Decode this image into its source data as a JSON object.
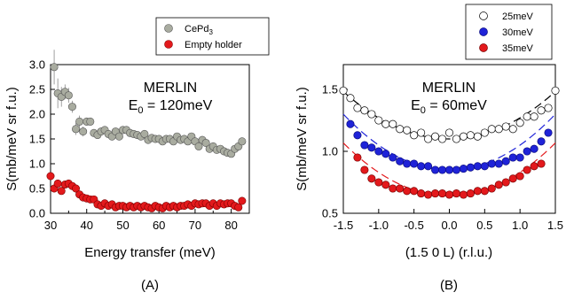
{
  "chart_data": [
    {
      "type": "scatter",
      "panel_label": "(A)",
      "xlabel": "Energy transfer (meV)",
      "ylabel": "S(mb/meV sr f.u.)",
      "xlim": [
        30,
        85
      ],
      "ylim": [
        0.0,
        3.0
      ],
      "xticks": [
        "30",
        "40",
        "50",
        "60",
        "70",
        "80"
      ],
      "yticks": [
        "0.0",
        "0.5",
        "1.0",
        "1.5",
        "2.0",
        "2.5",
        "3.0"
      ],
      "annotation": {
        "line1": "MERLIN",
        "line2_prefix": "E",
        "line2_sub": "0",
        "line2_suffix": " = 120meV"
      },
      "legend_position": "top-right",
      "series": [
        {
          "name_main": "CePd",
          "name_sub": "3",
          "color": "#a9aca0",
          "x": [
            31,
            32,
            33,
            34,
            35,
            36,
            37,
            38,
            39,
            40,
            41,
            42,
            43,
            44,
            45,
            46,
            47,
            48,
            49,
            50,
            51,
            52,
            53,
            54,
            55,
            56,
            57,
            58,
            59,
            60,
            61,
            62,
            63,
            64,
            65,
            66,
            67,
            68,
            69,
            70,
            71,
            72,
            73,
            74,
            75,
            76,
            77,
            78,
            79,
            80,
            81,
            82,
            83
          ],
          "y": [
            2.95,
            2.42,
            2.35,
            2.45,
            2.38,
            2.15,
            1.7,
            1.85,
            1.65,
            1.85,
            1.85,
            1.62,
            1.58,
            1.65,
            1.68,
            1.6,
            1.55,
            1.65,
            1.55,
            1.68,
            1.68,
            1.62,
            1.6,
            1.58,
            1.55,
            1.6,
            1.48,
            1.52,
            1.5,
            1.5,
            1.45,
            1.5,
            1.5,
            1.45,
            1.55,
            1.48,
            1.5,
            1.45,
            1.55,
            1.45,
            1.35,
            1.48,
            1.42,
            1.3,
            1.35,
            1.28,
            1.3,
            1.25,
            1.22,
            1.2,
            1.3,
            1.35,
            1.45
          ],
          "err": [
            0.35,
            0.3,
            0.2,
            0.15,
            0.15,
            0.12,
            0.12,
            0.12,
            0.1,
            0.08,
            0.08,
            0.06,
            0.06,
            0.05,
            0.05,
            0.05,
            0.05,
            0.04,
            0.04,
            0.04,
            0.04,
            0.04,
            0.04,
            0.04,
            0.04,
            0.04,
            0.04,
            0.04,
            0.04,
            0.04,
            0.04,
            0.04,
            0.04,
            0.04,
            0.04,
            0.04,
            0.04,
            0.04,
            0.04,
            0.04,
            0.04,
            0.04,
            0.04,
            0.04,
            0.04,
            0.04,
            0.04,
            0.04,
            0.04,
            0.04,
            0.04,
            0.04,
            0.04
          ]
        },
        {
          "name_main": "Empty holder",
          "name_sub": "",
          "color": "#e3191c",
          "x": [
            30,
            31,
            32,
            33,
            34,
            35,
            36,
            37,
            38,
            39,
            40,
            41,
            42,
            43,
            44,
            45,
            46,
            47,
            48,
            49,
            50,
            51,
            52,
            53,
            54,
            55,
            56,
            57,
            58,
            59,
            60,
            61,
            62,
            63,
            64,
            65,
            66,
            67,
            68,
            69,
            70,
            71,
            72,
            73,
            74,
            75,
            76,
            77,
            78,
            79,
            80,
            81,
            82,
            83
          ],
          "y": [
            0.75,
            0.5,
            0.6,
            0.45,
            0.58,
            0.6,
            0.55,
            0.5,
            0.38,
            0.32,
            0.3,
            0.28,
            0.28,
            0.18,
            0.15,
            0.2,
            0.15,
            0.18,
            0.12,
            0.15,
            0.15,
            0.12,
            0.15,
            0.12,
            0.15,
            0.12,
            0.15,
            0.12,
            0.1,
            0.15,
            0.12,
            0.1,
            0.15,
            0.12,
            0.15,
            0.12,
            0.15,
            0.15,
            0.18,
            0.15,
            0.2,
            0.18,
            0.2,
            0.2,
            0.15,
            0.2,
            0.15,
            0.2,
            0.18,
            0.2,
            0.2,
            0.15,
            0.12,
            0.25
          ]
        }
      ]
    },
    {
      "type": "scatter",
      "panel_label": "(B)",
      "xlabel": "(1.5 0 L) (r.l.u.)",
      "ylabel": "S(mb/meV sr f.u.)",
      "xlim": [
        -1.5,
        1.5
      ],
      "ylim": [
        0.5,
        1.7
      ],
      "xticks": [
        "-1.5",
        "-1.0",
        "-0.5",
        "0.0",
        "0.5",
        "1.0",
        "1.5"
      ],
      "yticks": [
        "0.5",
        "1.0",
        "1.5"
      ],
      "annotation": {
        "line1": "MERLIN",
        "line2_prefix": "E",
        "line2_sub": "0",
        "line2_suffix": " = 60meV"
      },
      "legend_position": "top-right",
      "series": [
        {
          "name": "25meV",
          "fill": "#ffffff",
          "stroke": "#000000",
          "fit_color": "#000000",
          "fit": {
            "a": 1.1,
            "b": 0.17
          },
          "x": [
            -1.5,
            -1.4,
            -1.3,
            -1.2,
            -1.1,
            -1.0,
            -0.9,
            -0.8,
            -0.7,
            -0.6,
            -0.5,
            -0.4,
            -0.3,
            -0.2,
            -0.1,
            0.0,
            0.1,
            0.2,
            0.3,
            0.4,
            0.5,
            0.6,
            0.7,
            0.8,
            0.9,
            1.0,
            1.1,
            1.2,
            1.3,
            1.4,
            1.5
          ],
          "y": [
            1.49,
            1.43,
            1.35,
            1.33,
            1.3,
            1.25,
            1.22,
            1.22,
            1.18,
            1.17,
            1.13,
            1.15,
            1.1,
            1.12,
            1.1,
            1.15,
            1.1,
            1.12,
            1.13,
            1.12,
            1.15,
            1.18,
            1.18,
            1.2,
            1.18,
            1.23,
            1.28,
            1.28,
            1.33,
            1.35,
            1.49
          ]
        },
        {
          "name": "30meV",
          "fill": "#1f23d8",
          "stroke": "#1f23d8",
          "fit_color": "#1f23d8",
          "fit": {
            "a": 0.85,
            "b": 0.2
          },
          "x": [
            -1.4,
            -1.3,
            -1.2,
            -1.1,
            -1.0,
            -0.9,
            -0.8,
            -0.7,
            -0.6,
            -0.5,
            -0.4,
            -0.3,
            -0.2,
            -0.1,
            0.0,
            0.1,
            0.2,
            0.3,
            0.4,
            0.5,
            0.6,
            0.7,
            0.8,
            0.9,
            1.0,
            1.1,
            1.2,
            1.3,
            1.4
          ],
          "y": [
            1.22,
            1.13,
            1.05,
            1.03,
            1.0,
            0.98,
            0.95,
            0.92,
            0.9,
            0.9,
            0.88,
            0.88,
            0.85,
            0.85,
            0.85,
            0.85,
            0.86,
            0.87,
            0.88,
            0.88,
            0.9,
            0.9,
            0.92,
            0.95,
            0.95,
            1.0,
            1.02,
            1.08,
            1.15
          ]
        },
        {
          "name": "35meV",
          "fill": "#e3191c",
          "stroke": "#e3191c",
          "fit_color": "#e3191c",
          "fit": {
            "a": 0.64,
            "b": 0.19
          },
          "x": [
            -1.3,
            -1.2,
            -1.1,
            -1.0,
            -0.9,
            -0.8,
            -0.7,
            -0.6,
            -0.5,
            -0.4,
            -0.3,
            -0.2,
            -0.1,
            0.0,
            0.1,
            0.2,
            0.3,
            0.4,
            0.5,
            0.6,
            0.7,
            0.8,
            0.9,
            1.0,
            1.1,
            1.2,
            1.3
          ],
          "y": [
            0.95,
            0.85,
            0.78,
            0.75,
            0.73,
            0.7,
            0.7,
            0.68,
            0.68,
            0.66,
            0.65,
            0.66,
            0.66,
            0.65,
            0.66,
            0.65,
            0.66,
            0.68,
            0.68,
            0.7,
            0.73,
            0.75,
            0.78,
            0.8,
            0.85,
            0.88,
            0.9
          ]
        }
      ]
    }
  ]
}
